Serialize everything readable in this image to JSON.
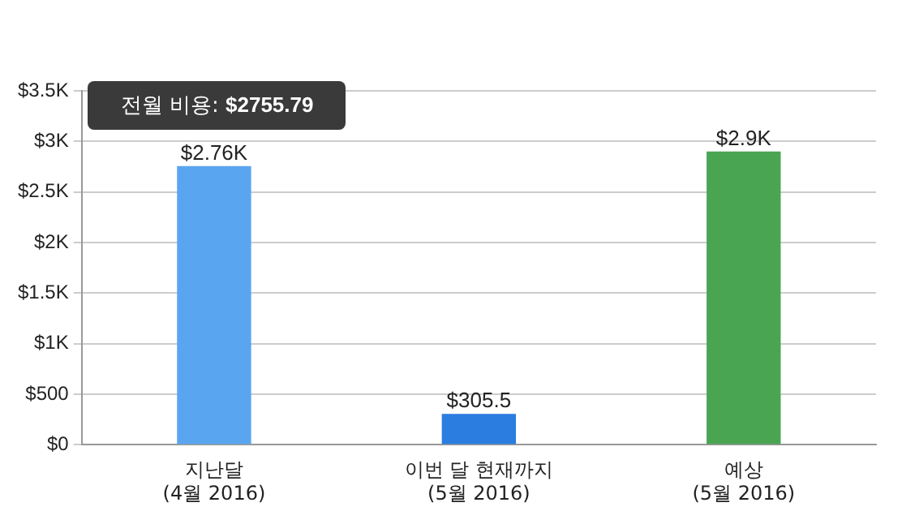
{
  "chart_data": {
    "type": "bar",
    "categories": [
      "지난달\n(4월 2016)",
      "이번 달 현재까지\n(5월 2016)",
      "예상\n(5월 2016)"
    ],
    "values": [
      2755.79,
      305.5,
      2900
    ],
    "colors": [
      "#5aa5f0",
      "#2b7de0",
      "#4aa552"
    ],
    "value_labels": [
      "$2.76K",
      "$305.5",
      "$2.9K"
    ],
    "ylim": [
      0,
      3500
    ],
    "yticks": [
      {
        "value": 0,
        "label": "$0"
      },
      {
        "value": 500,
        "label": "$500"
      },
      {
        "value": 1000,
        "label": "$1K"
      },
      {
        "value": 1500,
        "label": "$1.5K"
      },
      {
        "value": 2000,
        "label": "$2K"
      },
      {
        "value": 2500,
        "label": "$2.5K"
      },
      {
        "value": 3000,
        "label": "$3K"
      },
      {
        "value": 3500,
        "label": "$3.5K"
      }
    ],
    "grid": "y",
    "annotations": [
      {
        "text": "전월 비용: $2755.79",
        "x": "지난달\n(4월 2016)",
        "y": 2755.79
      }
    ]
  }
}
